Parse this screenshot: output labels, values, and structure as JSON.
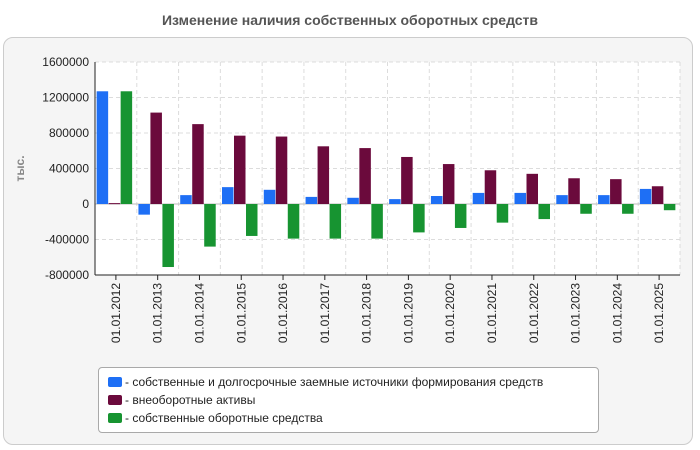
{
  "title": "Изменение наличия собственных оборотных средств",
  "legend": {
    "items": [
      {
        "label": "- собственные и долгосрочные заемные источники формирования средств",
        "color": "#1E6FF5"
      },
      {
        "label": "- внеоборотные активы",
        "color": "#6B0A3C"
      },
      {
        "label": "- собственные оборотные средства",
        "color": "#179431"
      }
    ]
  },
  "chart_data": {
    "type": "bar",
    "title": "Изменение наличия собственных оборотных средств",
    "ylabel": "тыс.",
    "ylim": [
      -800000,
      1600000
    ],
    "yticks": [
      1600000,
      1200000,
      800000,
      400000,
      0,
      -400000,
      -800000
    ],
    "categories": [
      "01.01.2012",
      "01.01.2013",
      "01.01.2014",
      "01.01.2015",
      "01.01.2016",
      "01.01.2017",
      "01.01.2018",
      "01.01.2019",
      "01.01.2020",
      "01.01.2021",
      "01.01.2022",
      "01.01.2023",
      "01.01.2024",
      "01.01.2025"
    ],
    "series": [
      {
        "name": "собственные и долгосрочные заемные источники формирования средств",
        "color": "#1E6FF5",
        "values": [
          1270000,
          -120000,
          100000,
          190000,
          160000,
          80000,
          70000,
          55000,
          90000,
          125000,
          125000,
          100000,
          100000,
          170000
        ]
      },
      {
        "name": "внеоборотные активы",
        "color": "#6B0A3C",
        "values": [
          10000,
          1030000,
          900000,
          770000,
          760000,
          650000,
          630000,
          530000,
          450000,
          380000,
          340000,
          290000,
          280000,
          200000
        ]
      },
      {
        "name": "собственные оборотные средства",
        "color": "#179431",
        "values": [
          1270000,
          -710000,
          -480000,
          -360000,
          -390000,
          -390000,
          -390000,
          -320000,
          -270000,
          -210000,
          -170000,
          -110000,
          -110000,
          -70000
        ]
      }
    ],
    "grid": true,
    "legend_position": "bottom"
  }
}
